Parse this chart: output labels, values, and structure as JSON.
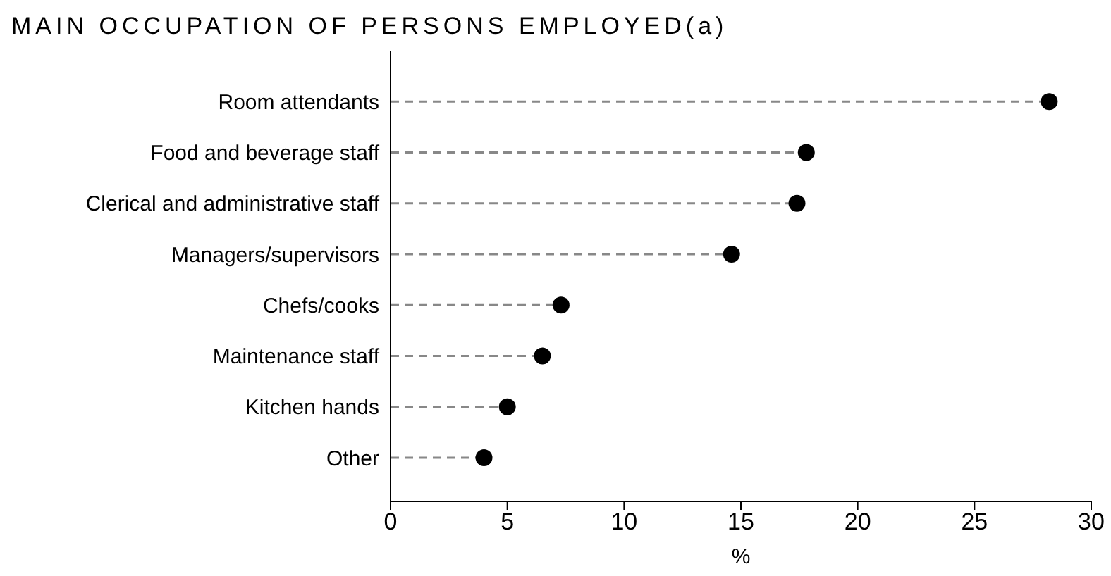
{
  "chart_data": {
    "type": "lollipop",
    "title": "MAIN OCCUPATION OF PERSONS EMPLOYED(a)",
    "xlabel": "%",
    "orientation": "horizontal",
    "categories": [
      "Room attendants",
      "Food and beverage staff",
      "Clerical and administrative staff",
      "Managers/supervisors",
      "Chefs/cooks",
      "Maintenance staff",
      "Kitchen hands",
      "Other"
    ],
    "values": [
      28.2,
      17.8,
      17.4,
      14.6,
      7.3,
      6.5,
      5.0,
      4.0
    ],
    "color": "#000000",
    "marker": "circle",
    "line_style": "dashed",
    "xlim": [
      0,
      30
    ],
    "xticks": [
      0,
      5,
      10,
      15,
      20,
      25,
      30
    ]
  }
}
